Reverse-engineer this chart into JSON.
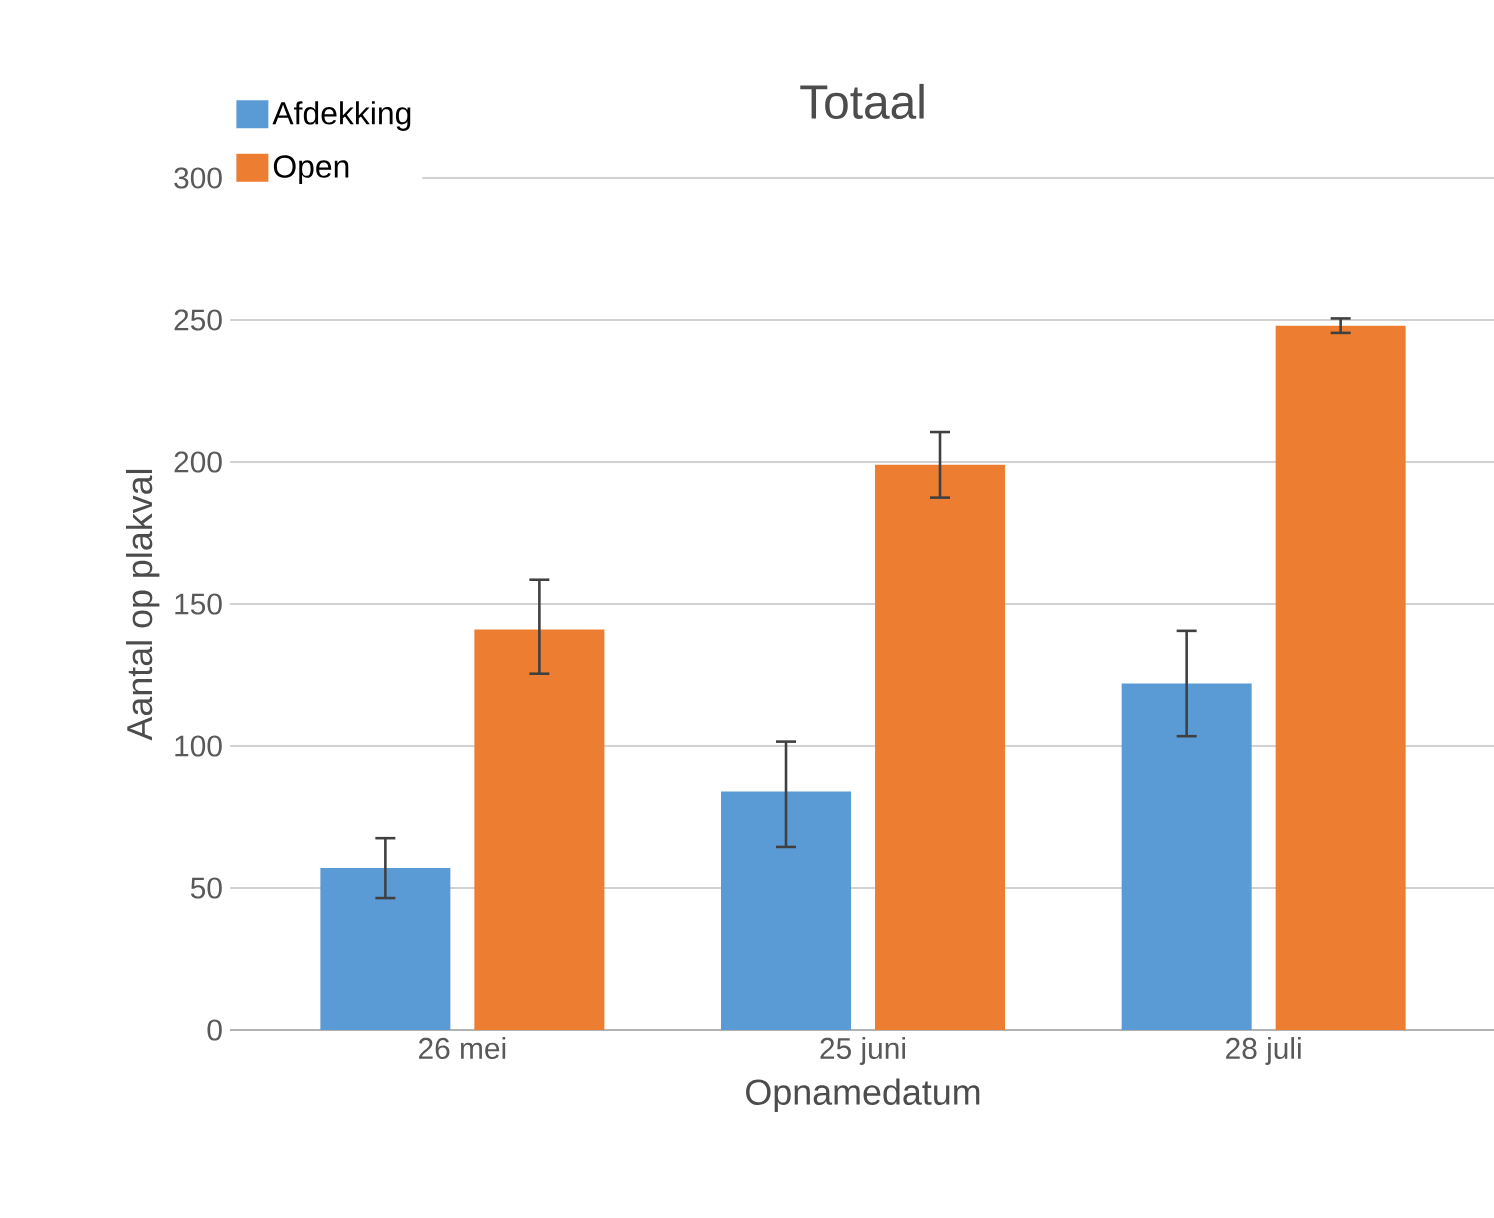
{
  "chart_data": {
    "type": "bar",
    "title": "Totaal",
    "xlabel": "Opnamedatum",
    "ylabel": "Aantal op plakval",
    "categories": [
      "26 mei",
      "25 juni",
      "28 juli"
    ],
    "series": [
      {
        "name": "Afdekking",
        "color": "#5b9bd5",
        "values": [
          57,
          84,
          122
        ],
        "errors": [
          [
            46,
            68
          ],
          [
            64,
            102
          ],
          [
            103,
            141
          ]
        ]
      },
      {
        "name": "Open",
        "color": "#ed7d31",
        "values": [
          141,
          199,
          248
        ],
        "errors": [
          [
            125,
            159
          ],
          [
            187,
            211
          ],
          [
            245,
            251
          ]
        ]
      }
    ],
    "ylim": [
      0,
      300
    ],
    "yticks": [
      0,
      50,
      100,
      150,
      200,
      250,
      300
    ],
    "grid": "y",
    "legend": "top left"
  }
}
